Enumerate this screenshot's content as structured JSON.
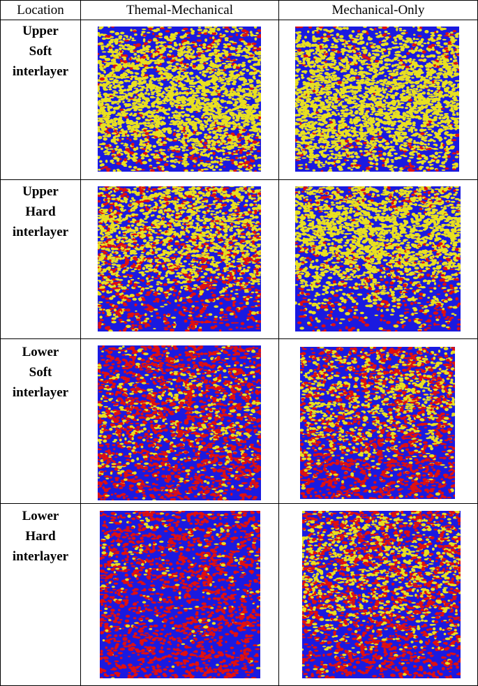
{
  "header": {
    "col_location": "Location",
    "col_thermal": "Themal-Mechanical",
    "col_mechanical": "Mechanical-Only"
  },
  "rows": [
    {
      "label_line1": "Upper",
      "label_line2": "Soft",
      "label_line3": "interlayer",
      "thermal": {
        "yellow": 0.72,
        "red": 0.12,
        "blue": 0.16
      },
      "mechanical": {
        "yellow": 0.8,
        "red": 0.08,
        "blue": 0.12
      }
    },
    {
      "label_line1": "Upper",
      "label_line2": "Hard",
      "label_line3": "interlayer",
      "thermal": {
        "yellow": 0.5,
        "red": 0.2,
        "blue": 0.3
      },
      "mechanical": {
        "yellow": 0.62,
        "red": 0.12,
        "blue": 0.26
      }
    },
    {
      "label_line1": "Lower",
      "label_line2": "Soft",
      "label_line3": "interlayer",
      "thermal": {
        "yellow": 0.18,
        "red": 0.32,
        "blue": 0.5
      },
      "mechanical": {
        "yellow": 0.28,
        "red": 0.3,
        "blue": 0.42
      }
    },
    {
      "label_line1": "Lower",
      "label_line2": "Hard",
      "label_line3": "interlayer",
      "thermal": {
        "yellow": 0.06,
        "red": 0.3,
        "blue": 0.64
      },
      "mechanical": {
        "yellow": 0.3,
        "red": 0.3,
        "blue": 0.4
      }
    }
  ],
  "colors": {
    "yellow": "#e8e020",
    "red": "#e01010",
    "blue": "#1a1ae0"
  }
}
